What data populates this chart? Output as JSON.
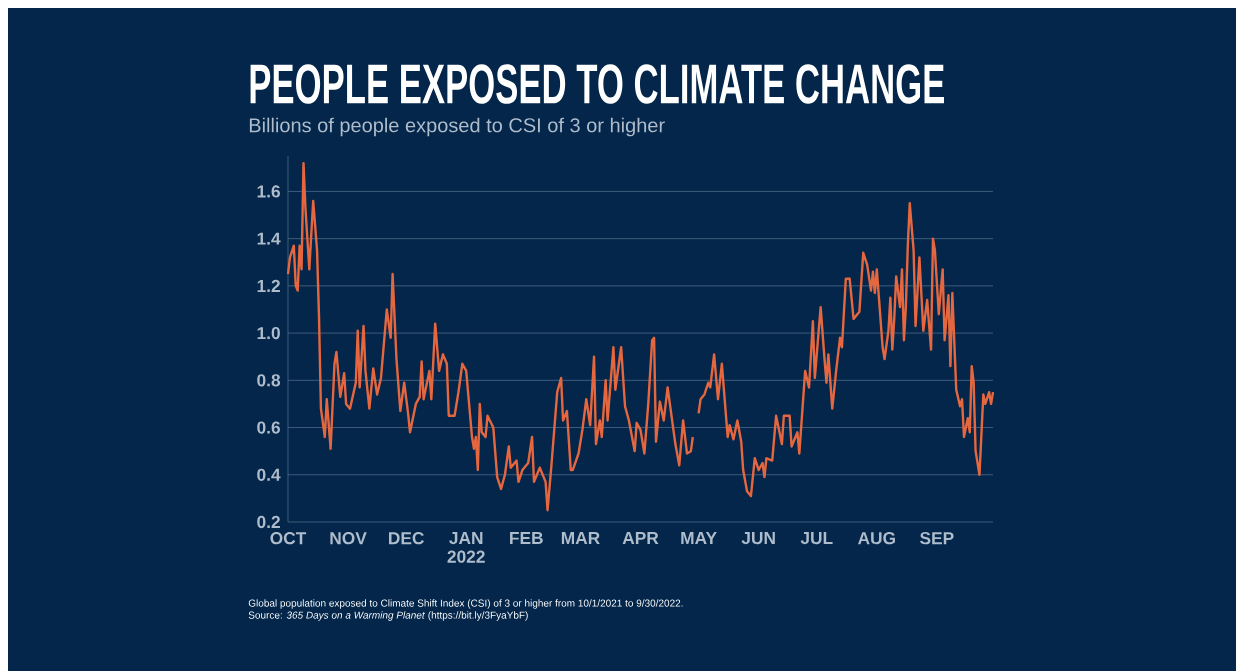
{
  "chart_data": {
    "type": "line",
    "title": "PEOPLE EXPOSED TO CLIMATE CHANGE",
    "subtitle": "Billions of people exposed to CSI of 3 or higher",
    "annotations": [
      "Global population exposed to Climate Shift Index (CSI) of 3 or higher from 10/1/2021 to 9/30/2022.",
      "Source: *365 Days on a Warming Planet* (https://bit.ly/3FyaYbF)"
    ],
    "x": [
      "2021-10-01",
      "2021-10-02",
      "2021-10-04",
      "2021-10-05",
      "2021-10-06",
      "2021-10-07",
      "2021-10-08",
      "2021-10-09",
      "2021-10-10",
      "2021-10-12",
      "2021-10-14",
      "2021-10-16",
      "2021-10-17",
      "2021-10-18",
      "2021-10-20",
      "2021-10-21",
      "2021-10-23",
      "2021-10-25",
      "2021-10-26",
      "2021-10-28",
      "2021-10-30",
      "2021-10-31",
      "2021-11-02",
      "2021-11-05",
      "2021-11-06",
      "2021-11-07",
      "2021-11-09",
      "2021-11-10",
      "2021-11-12",
      "2021-11-14",
      "2021-11-16",
      "2021-11-18",
      "2021-11-21",
      "2021-11-23",
      "2021-11-24",
      "2021-11-26",
      "2021-11-28",
      "2021-11-30",
      "2021-12-02",
      "2021-12-03",
      "2021-12-06",
      "2021-12-08",
      "2021-12-09",
      "2021-12-10",
      "2021-12-13",
      "2021-12-14",
      "2021-12-16",
      "2021-12-18",
      "2021-12-20",
      "2021-12-22",
      "2021-12-23",
      "2021-12-26",
      "2021-12-28",
      "2021-12-30",
      "2022-01-01",
      "2022-01-04",
      "2022-01-05",
      "2022-01-06",
      "2022-01-07",
      "2022-01-08",
      "2022-01-09",
      "2022-01-11",
      "2022-01-12",
      "2022-01-15",
      "2022-01-17",
      "2022-01-19",
      "2022-01-21",
      "2022-01-23",
      "2022-01-24",
      "2022-01-27",
      "2022-01-28",
      "2022-01-30",
      "2022-02-02",
      "2022-02-04",
      "2022-02-05",
      "2022-02-08",
      "2022-02-11",
      "2022-02-12",
      "2022-02-14",
      "2022-02-17",
      "2022-02-19",
      "2022-02-20",
      "2022-02-22",
      "2022-02-24",
      "2022-02-25",
      "2022-02-28",
      "2022-03-02",
      "2022-03-04",
      "2022-03-06",
      "2022-03-08",
      "2022-03-09",
      "2022-03-11",
      "2022-03-12",
      "2022-03-14",
      "2022-03-15",
      "2022-03-18",
      "2022-03-19",
      "2022-03-22",
      "2022-03-24",
      "2022-03-26",
      "2022-03-29",
      "2022-03-30",
      "2022-04-01",
      "2022-04-03",
      "2022-04-05",
      "2022-04-07",
      "2022-04-08",
      "2022-04-09",
      "2022-04-11",
      "2022-04-13",
      "2022-04-15",
      "2022-04-17",
      "2022-04-19",
      "2022-04-21",
      "2022-04-23",
      "2022-04-25",
      "2022-04-27",
      "2022-04-28",
      "2022-04-29",
      "2022-05-01",
      "2022-05-02",
      "2022-05-04",
      "2022-05-06",
      "2022-05-07",
      "2022-05-09",
      "2022-05-11",
      "2022-05-13",
      "2022-05-16",
      "2022-05-17",
      "2022-05-19",
      "2022-05-21",
      "2022-05-23",
      "2022-05-24",
      "2022-05-26",
      "2022-05-28",
      "2022-05-30",
      "2022-06-01",
      "2022-06-03",
      "2022-06-04",
      "2022-06-05",
      "2022-06-08",
      "2022-06-10",
      "2022-06-13",
      "2022-06-14",
      "2022-06-17",
      "2022-06-18",
      "2022-06-21",
      "2022-06-22",
      "2022-06-25",
      "2022-06-27",
      "2022-06-29",
      "2022-06-30",
      "2022-07-03",
      "2022-07-05",
      "2022-07-06",
      "2022-07-07",
      "2022-07-09",
      "2022-07-11",
      "2022-07-13",
      "2022-07-14",
      "2022-07-16",
      "2022-07-18",
      "2022-07-20",
      "2022-07-23",
      "2022-07-25",
      "2022-07-27",
      "2022-07-29",
      "2022-07-30",
      "2022-07-31",
      "2022-08-01",
      "2022-08-04",
      "2022-08-05",
      "2022-08-07",
      "2022-08-08",
      "2022-08-09",
      "2022-08-10",
      "2022-08-11",
      "2022-08-13",
      "2022-08-14",
      "2022-08-15",
      "2022-08-16",
      "2022-08-17",
      "2022-08-18",
      "2022-08-20",
      "2022-08-21",
      "2022-08-23",
      "2022-08-25",
      "2022-08-27",
      "2022-08-29",
      "2022-08-30",
      "2022-08-31",
      "2022-09-02",
      "2022-09-04",
      "2022-09-05",
      "2022-09-07",
      "2022-09-08",
      "2022-09-09",
      "2022-09-11",
      "2022-09-13",
      "2022-09-14",
      "2022-09-15",
      "2022-09-17",
      "2022-09-18",
      "2022-09-19",
      "2022-09-20",
      "2022-09-21",
      "2022-09-23",
      "2022-09-25",
      "2022-09-26",
      "2022-09-28",
      "2022-09-29",
      "2022-09-30"
    ],
    "series": [
      {
        "color": "#e5673f",
        "values": [
          1.25,
          1.32,
          1.37,
          1.2,
          1.18,
          1.37,
          1.27,
          1.72,
          1.53,
          1.27,
          1.56,
          1.35,
          1.07,
          0.68,
          0.56,
          0.72,
          0.51,
          0.87,
          0.92,
          0.73,
          0.83,
          0.7,
          0.68,
          0.79,
          1.01,
          0.77,
          1.03,
          0.84,
          0.68,
          0.85,
          0.74,
          0.81,
          1.1,
          0.98,
          1.25,
          0.89,
          0.67,
          0.79,
          0.66,
          0.58,
          0.7,
          0.73,
          0.88,
          0.72,
          0.84,
          0.72,
          1.04,
          0.84,
          0.91,
          0.87,
          0.65,
          0.65,
          0.75,
          0.87,
          0.84,
          0.56,
          0.51,
          0.56,
          0.42,
          0.7,
          0.58,
          0.56,
          0.65,
          0.6,
          0.39,
          0.34,
          0.4,
          0.52,
          0.43,
          0.46,
          0.37,
          0.42,
          0.45,
          0.56,
          0.37,
          0.43,
          0.37,
          0.25,
          0.44,
          0.75,
          0.81,
          0.63,
          0.67,
          0.42,
          0.42,
          0.49,
          0.59,
          0.72,
          0.61,
          0.9,
          0.53,
          0.63,
          0.56,
          0.8,
          0.63,
          0.94,
          0.76,
          0.94,
          0.69,
          0.63,
          0.5,
          0.62,
          0.59,
          0.49,
          0.7,
          0.97,
          0.98,
          0.54,
          0.71,
          0.63,
          0.77,
          0.65,
          0.53,
          0.44,
          0.63,
          0.49,
          0.5,
          0.56,
          null,
          0.66,
          0.72,
          0.74,
          0.79,
          0.77,
          0.91,
          0.72,
          0.87,
          0.56,
          0.61,
          0.55,
          0.63,
          0.54,
          0.42,
          0.33,
          0.31,
          0.47,
          0.42,
          0.45,
          0.39,
          0.47,
          0.46,
          0.65,
          0.53,
          0.65,
          0.65,
          0.52,
          0.58,
          0.49,
          0.84,
          0.77,
          1.05,
          0.81,
          1.11,
          0.89,
          0.79,
          0.91,
          0.68,
          0.84,
          0.98,
          0.94,
          1.23,
          1.23,
          1.06,
          1.09,
          1.34,
          1.29,
          1.18,
          1.26,
          1.17,
          1.27,
          0.94,
          0.89,
          1.01,
          1.15,
          0.93,
          1.06,
          1.24,
          1.11,
          1.27,
          0.97,
          1.11,
          1.37,
          1.55,
          1.35,
          1.03,
          1.32,
          1.01,
          1.14,
          0.93,
          1.4,
          1.35,
          1.08,
          1.27,
          0.97,
          1.16,
          0.86,
          1.17,
          0.76,
          0.69,
          0.72,
          0.56,
          0.64,
          0.58,
          0.86,
          0.79,
          0.5,
          0.4,
          0.74,
          0.7,
          0.75,
          0.7,
          0.75
        ]
      }
    ],
    "xlim": [
      "2021-10-01",
      "2022-09-30"
    ],
    "xticks": [
      {
        "value": "2021-10-01",
        "label": "OCT"
      },
      {
        "value": "2021-11-01",
        "label": "NOV"
      },
      {
        "value": "2021-12-01",
        "label": "DEC"
      },
      {
        "value": "2022-01-01",
        "label": "JAN 2022"
      },
      {
        "value": "2022-02-01",
        "label": "FEB"
      },
      {
        "value": "2022-03-01",
        "label": "MAR"
      },
      {
        "value": "2022-04-01",
        "label": "APR"
      },
      {
        "value": "2022-05-01",
        "label": "MAY"
      },
      {
        "value": "2022-06-01",
        "label": "JUN"
      },
      {
        "value": "2022-07-01",
        "label": "JUL"
      },
      {
        "value": "2022-08-01",
        "label": "AUG"
      },
      {
        "value": "2022-09-01",
        "label": "SEP"
      }
    ],
    "ylim": [
      0.2,
      1.75
    ],
    "yticks": [
      {
        "value": 0.2,
        "label": "0.2"
      },
      {
        "value": 0.4,
        "label": "0.4"
      },
      {
        "value": 0.6,
        "label": "0.6"
      },
      {
        "value": 0.8,
        "label": "0.8"
      },
      {
        "value": 1.0,
        "label": "1.0"
      },
      {
        "value": 1.2,
        "label": "1.2"
      },
      {
        "value": 1.4,
        "label": "1.4"
      },
      {
        "value": 1.6,
        "label": "1.6"
      }
    ],
    "grid": "y"
  }
}
